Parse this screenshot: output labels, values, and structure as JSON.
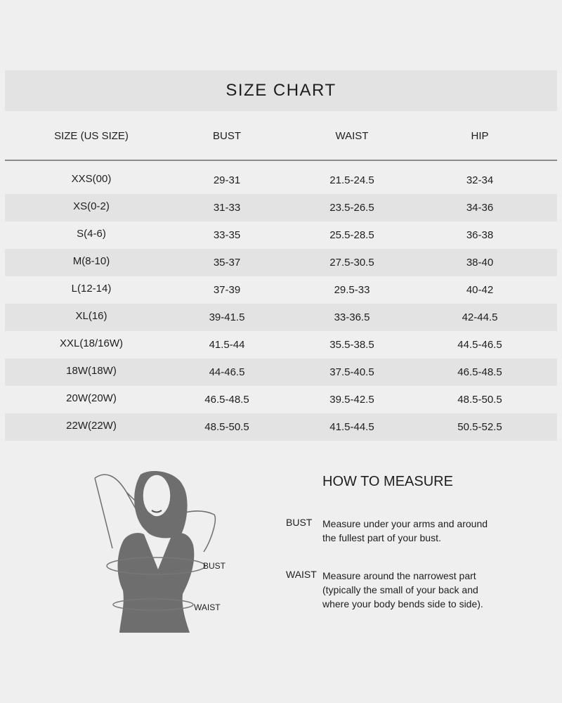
{
  "title": "SIZE CHART",
  "columns": [
    "SIZE (US SIZE)",
    "BUST",
    "WAIST",
    "HIP"
  ],
  "rows": [
    [
      "XXS(00)",
      "29-31",
      "21.5-24.5",
      "32-34"
    ],
    [
      "XS(0-2)",
      "31-33",
      "23.5-26.5",
      "34-36"
    ],
    [
      "S(4-6)",
      "33-35",
      "25.5-28.5",
      "36-38"
    ],
    [
      "M(8-10)",
      "35-37",
      "27.5-30.5",
      "38-40"
    ],
    [
      "L(12-14)",
      "37-39",
      "29.5-33",
      "40-42"
    ],
    [
      "XL(16)",
      "39-41.5",
      "33-36.5",
      "42-44.5"
    ],
    [
      "XXL(18/16W)",
      "41.5-44",
      "35.5-38.5",
      "44.5-46.5"
    ],
    [
      "18W(18W)",
      "44-46.5",
      "37.5-40.5",
      "46.5-48.5"
    ],
    [
      "20W(20W)",
      "46.5-48.5",
      "39.5-42.5",
      "48.5-50.5"
    ],
    [
      "22W(22W)",
      "48.5-50.5",
      "41.5-44.5",
      "50.5-52.5"
    ]
  ],
  "how_to_measure": {
    "title": "HOW TO MEASURE",
    "items": [
      {
        "label": "BUST",
        "lines": [
          "Measure under your arms and around",
          "the fullest part of your bust."
        ]
      },
      {
        "label": "WAIST",
        "lines": [
          "Measure around the narrowest part",
          "(typically the small of your back and",
          "where your body bends side to side)."
        ]
      }
    ]
  },
  "figure": {
    "bust_label": "BUST",
    "waist_label": "WAIST"
  }
}
